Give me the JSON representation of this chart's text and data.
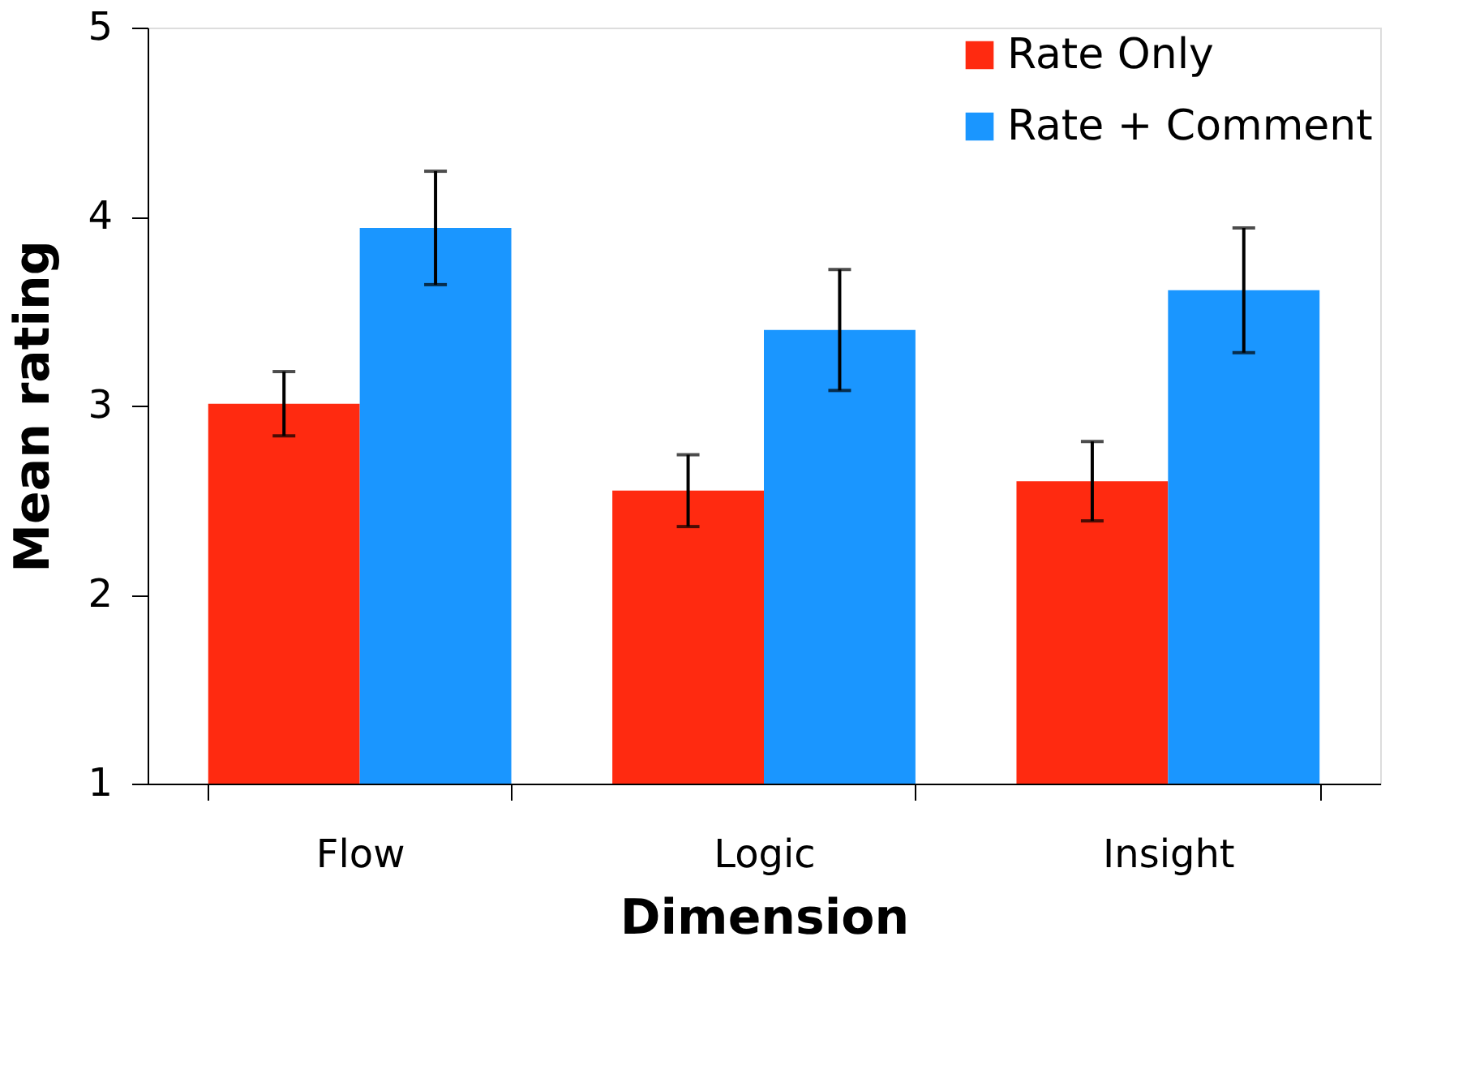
{
  "chart_data": {
    "type": "bar",
    "xlabel": "Dimension",
    "ylabel": "Mean rating",
    "categories": [
      "Flow",
      "Logic",
      "Insight"
    ],
    "series": [
      {
        "name": "Rate Only",
        "color": "#ff2a10",
        "values": [
          3.01,
          2.55,
          2.6
        ],
        "errors": [
          0.17,
          0.19,
          0.21
        ]
      },
      {
        "name": "Rate + Comment",
        "color": "#1a96ff",
        "values": [
          3.94,
          3.4,
          3.61
        ],
        "errors": [
          0.3,
          0.32,
          0.33
        ]
      }
    ],
    "ylim": [
      1,
      5
    ],
    "yticks": [
      1,
      2,
      3,
      4,
      5
    ],
    "grid": false,
    "legend": "top right"
  }
}
